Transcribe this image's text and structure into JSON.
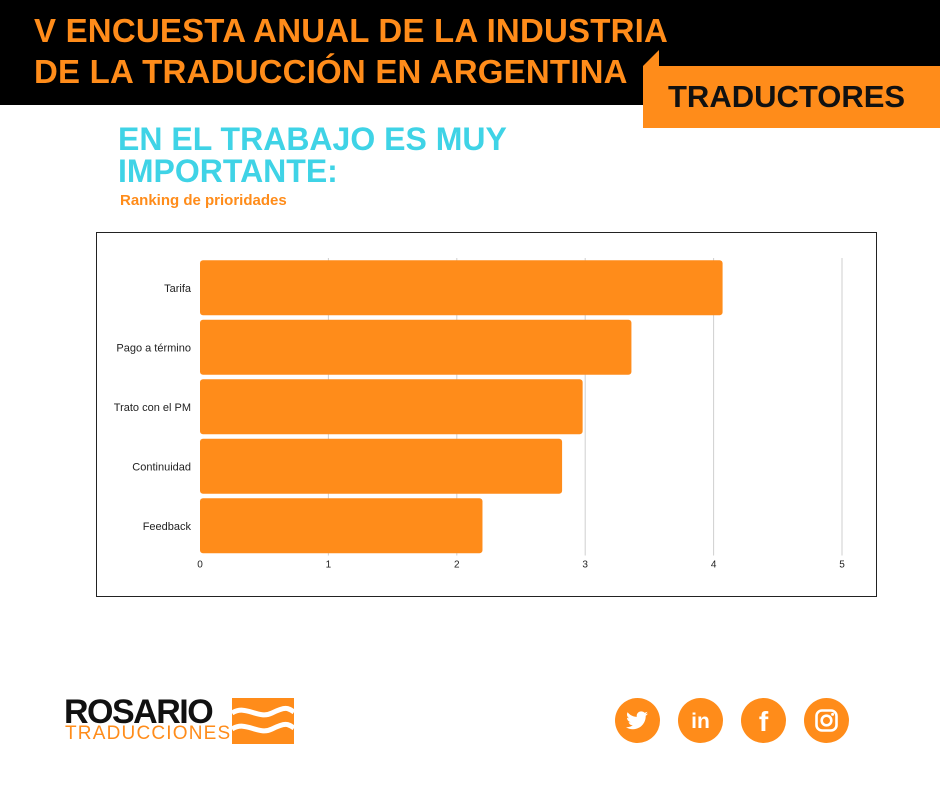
{
  "header": {
    "title": "V ENCUESTA ANUAL DE LA INDUSTRIA\nDE LA TRADUCCIÓN EN ARGENTINA",
    "tag": "TRADUCTORES"
  },
  "section": {
    "title": "EN EL TRABAJO ES MUY\nIMPORTANTE:",
    "subtitle": "Ranking de prioridades"
  },
  "chart_data": {
    "type": "bar",
    "orientation": "horizontal",
    "categories": [
      "Tarifa",
      "Pago a término",
      "Trato con el PM",
      "Continuidad",
      "Feedback"
    ],
    "values": [
      4.07,
      3.36,
      2.98,
      2.82,
      2.2
    ],
    "xlim": [
      0,
      5
    ],
    "xticks": [
      0,
      1,
      2,
      3,
      4,
      5
    ],
    "grid": true,
    "legend": "none",
    "colors": {
      "bar": "#ff8c1a",
      "grid": "#cfcfcf",
      "text": "#222222"
    }
  },
  "footer": {
    "logo": {
      "main": "ROSARIO",
      "sub": "TRADUCCIONES"
    },
    "social": [
      {
        "name": "twitter-icon"
      },
      {
        "name": "linkedin-icon",
        "text": "in"
      },
      {
        "name": "facebook-icon",
        "text": "f"
      },
      {
        "name": "instagram-icon"
      }
    ]
  },
  "colors": {
    "accent": "#ff8c1a",
    "title_cyan": "#3fd3e6",
    "header_bg": "#000000"
  }
}
